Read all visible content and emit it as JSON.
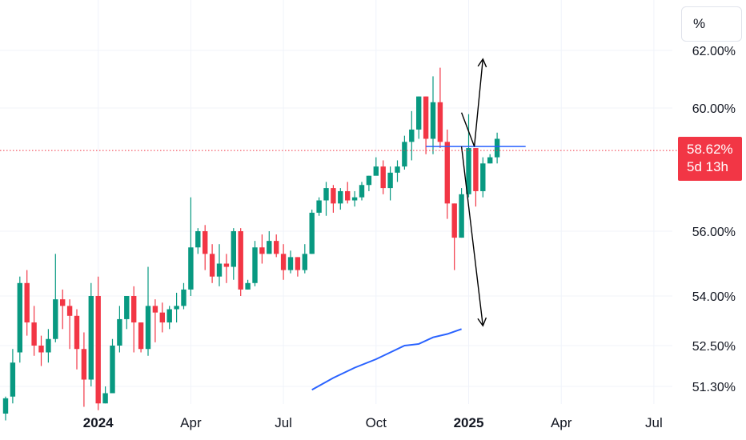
{
  "scale_button": "%",
  "current": {
    "value": 58.62,
    "label": "58.62%",
    "countdown": "5d 13h",
    "color": "#f23645"
  },
  "colors": {
    "up": "#089981",
    "down": "#f23645",
    "ma": "#2962ff",
    "level": "#2962ff",
    "annotation": "#000000"
  },
  "chart_data": {
    "type": "candlestick",
    "y_ticks": [
      {
        "value": 62.0,
        "label": "62.00%"
      },
      {
        "value": 60.0,
        "label": "60.00%"
      },
      {
        "value": 56.0,
        "label": "56.00%"
      },
      {
        "value": 54.0,
        "label": "54.00%"
      },
      {
        "value": 52.5,
        "label": "52.50%"
      },
      {
        "value": 51.3,
        "label": "51.30%"
      }
    ],
    "x_ticks": [
      {
        "label": "2024",
        "bold": true,
        "week": 13
      },
      {
        "label": "Apr",
        "bold": false,
        "week": 26
      },
      {
        "label": "Jul",
        "bold": false,
        "week": 39
      },
      {
        "label": "Oct",
        "bold": false,
        "week": 52
      },
      {
        "label": "2025",
        "bold": true,
        "week": 65
      },
      {
        "label": "Apr",
        "bold": false,
        "week": 78
      },
      {
        "label": "Jul",
        "bold": false,
        "week": 91
      }
    ],
    "candles": [
      [
        50.5,
        50.95,
        50.3,
        51.0
      ],
      [
        51.0,
        52.0,
        50.8,
        52.4
      ],
      [
        52.3,
        54.4,
        52.0,
        54.6
      ],
      [
        54.4,
        53.2,
        52.8,
        54.8
      ],
      [
        53.2,
        52.5,
        52.2,
        53.7
      ],
      [
        52.5,
        52.3,
        51.9,
        52.8
      ],
      [
        52.3,
        52.7,
        52.0,
        53.0
      ],
      [
        52.7,
        53.9,
        52.6,
        55.3
      ],
      [
        53.9,
        53.7,
        53.0,
        54.2
      ],
      [
        53.7,
        53.4,
        52.4,
        53.9
      ],
      [
        53.4,
        52.4,
        51.8,
        53.6
      ],
      [
        52.4,
        51.5,
        50.7,
        52.9
      ],
      [
        51.5,
        54.0,
        51.3,
        54.4
      ],
      [
        54.0,
        50.8,
        50.6,
        54.6
      ],
      [
        50.8,
        51.1,
        50.8,
        51.3
      ],
      [
        51.1,
        52.5,
        51.1,
        52.7
      ],
      [
        52.5,
        53.3,
        52.3,
        53.7
      ],
      [
        53.3,
        54.0,
        53.0,
        54.0
      ],
      [
        54.0,
        53.2,
        52.3,
        54.3
      ],
      [
        53.2,
        52.4,
        52.3,
        53.2
      ],
      [
        52.4,
        53.7,
        52.2,
        54.9
      ],
      [
        53.7,
        53.5,
        52.6,
        53.9
      ],
      [
        53.5,
        53.2,
        52.9,
        53.8
      ],
      [
        53.2,
        53.6,
        53.0,
        53.7
      ],
      [
        53.6,
        53.7,
        53.2,
        54.1
      ],
      [
        53.7,
        54.2,
        53.6,
        54.4
      ],
      [
        54.2,
        55.5,
        54.0,
        57.1
      ],
      [
        55.5,
        56.0,
        55.3,
        56.1
      ],
      [
        56.0,
        55.3,
        54.8,
        56.2
      ],
      [
        55.3,
        54.6,
        54.4,
        55.6
      ],
      [
        54.6,
        55.0,
        54.3,
        55.6
      ],
      [
        55.0,
        54.9,
        54.4,
        55.3
      ],
      [
        54.9,
        56.0,
        54.5,
        56.1
      ],
      [
        56.0,
        54.2,
        54.0,
        56.1
      ],
      [
        54.2,
        54.4,
        54.2,
        54.5
      ],
      [
        54.4,
        55.5,
        54.3,
        55.7
      ],
      [
        55.5,
        55.3,
        55.0,
        55.9
      ],
      [
        55.3,
        55.7,
        55.3,
        56.0
      ],
      [
        55.7,
        55.3,
        55.2,
        55.9
      ],
      [
        55.3,
        54.8,
        54.5,
        55.6
      ],
      [
        54.8,
        55.2,
        54.7,
        55.4
      ],
      [
        55.2,
        54.8,
        54.6,
        55.2
      ],
      [
        54.8,
        55.3,
        54.7,
        55.6
      ],
      [
        55.3,
        56.6,
        55.3,
        56.7
      ],
      [
        56.6,
        57.0,
        56.5,
        57.1
      ],
      [
        57.0,
        57.4,
        56.5,
        57.6
      ],
      [
        57.4,
        56.9,
        56.6,
        57.5
      ],
      [
        56.9,
        57.3,
        56.7,
        57.4
      ],
      [
        57.3,
        57.0,
        56.9,
        57.6
      ],
      [
        57.0,
        57.1,
        56.8,
        57.3
      ],
      [
        57.1,
        57.5,
        57.0,
        57.6
      ],
      [
        57.5,
        57.8,
        57.3,
        57.8
      ],
      [
        57.8,
        58.1,
        57.9,
        58.4
      ],
      [
        58.1,
        57.4,
        57.2,
        58.3
      ],
      [
        57.4,
        57.9,
        57.0,
        58.1
      ],
      [
        57.9,
        58.1,
        57.6,
        58.3
      ],
      [
        58.1,
        58.9,
        58.0,
        59.1
      ],
      [
        58.9,
        59.3,
        58.3,
        59.9
      ],
      [
        59.3,
        60.4,
        59.0,
        60.4
      ],
      [
        60.4,
        59.0,
        58.5,
        60.4
      ],
      [
        59.0,
        60.2,
        58.5,
        61.1
      ],
      [
        60.2,
        58.9,
        58.7,
        61.4
      ],
      [
        58.9,
        56.9,
        56.4,
        59.3
      ],
      [
        56.9,
        55.8,
        54.8,
        56.9
      ],
      [
        55.8,
        57.2,
        55.8,
        57.4
      ],
      [
        57.2,
        58.7,
        57.1,
        59.8
      ],
      [
        58.7,
        57.3,
        56.8,
        58.7
      ],
      [
        57.3,
        58.2,
        57.1,
        58.4
      ],
      [
        58.2,
        58.4,
        58.2,
        58.5
      ],
      [
        58.4,
        59.0,
        58.2,
        59.2
      ]
    ],
    "moving_average": [
      [
        43,
        51.2
      ],
      [
        46,
        51.55
      ],
      [
        49,
        51.85
      ],
      [
        52,
        52.1
      ],
      [
        54,
        52.3
      ],
      [
        56,
        52.5
      ],
      [
        58,
        52.55
      ],
      [
        60,
        52.75
      ],
      [
        62,
        52.85
      ],
      [
        64,
        53.0
      ]
    ],
    "level_line": {
      "value": 58.75,
      "from_week": 59,
      "to_week": 73
    },
    "annotations": [
      {
        "name": "up-arrow",
        "points": [
          [
            64.0,
            59.85
          ],
          [
            65.8,
            58.75
          ],
          [
            67.0,
            61.7
          ]
        ]
      },
      {
        "name": "down-arrow",
        "points": [
          [
            64.0,
            58.75
          ],
          [
            67.0,
            53.1
          ]
        ]
      }
    ]
  }
}
